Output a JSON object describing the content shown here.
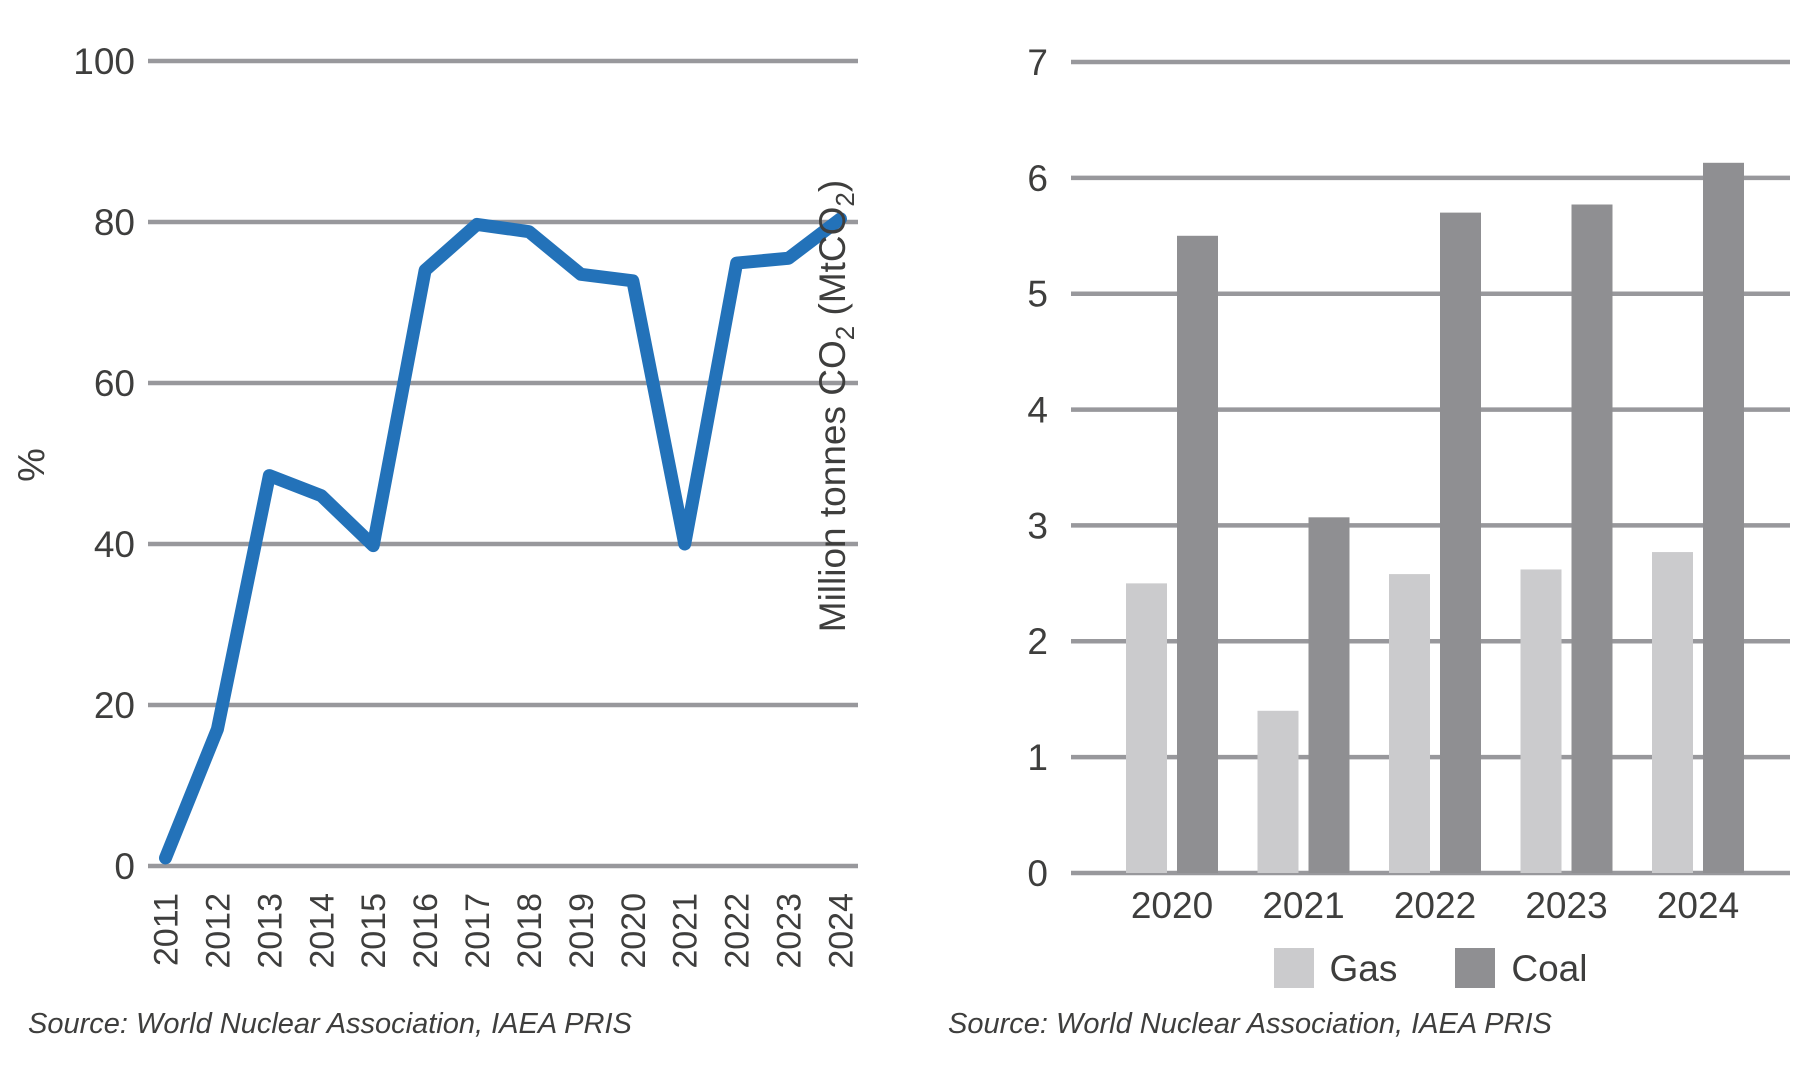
{
  "page": {
    "background": "#ffffff",
    "text_color": "#3e3e3d",
    "gridline_color": "#98989c"
  },
  "left_chart": {
    "source": "Source: World Nuclear Association, IAEA PRIS"
  },
  "right_chart": {
    "source": "Source: World Nuclear Association, IAEA PRIS",
    "legend": [
      {
        "label": "Gas",
        "color": "#cbcbcd"
      },
      {
        "label": "Coal",
        "color": "#8f8f92"
      }
    ]
  },
  "chart_data": [
    {
      "type": "line",
      "title": "",
      "x": [
        "2011",
        "2012",
        "2013",
        "2014",
        "2015",
        "2016",
        "2017",
        "2018",
        "2019",
        "2020",
        "2021",
        "2022",
        "2023",
        "2024"
      ],
      "values": [
        1,
        17,
        48.5,
        46,
        39.8,
        74,
        79.7,
        78.8,
        73.5,
        72.7,
        40,
        74.9,
        75.5,
        80.4
      ],
      "xlabel": "",
      "ylabel": "%",
      "ylim": [
        0,
        100
      ],
      "yticks": [
        0,
        20,
        40,
        60,
        80,
        100
      ],
      "grid": true,
      "legend_position": "none",
      "line_color": "#2372b9",
      "source": "Source: World Nuclear Association, IAEA PRIS"
    },
    {
      "type": "bar",
      "title": "",
      "categories": [
        "2020",
        "2021",
        "2022",
        "2023",
        "2024"
      ],
      "series": [
        {
          "name": "Gas",
          "color": "#cbcbcd",
          "values": [
            2.5,
            1.4,
            2.58,
            2.62,
            2.77
          ]
        },
        {
          "name": "Coal",
          "color": "#8f8f92",
          "values": [
            5.5,
            3.07,
            5.7,
            5.77,
            6.13
          ]
        }
      ],
      "xlabel": "",
      "ylabel": "Million tonnes CO₂ (MtCO₂)",
      "ylabel_parts": [
        {
          "t": "Million tonnes CO"
        },
        {
          "t": "2",
          "sub": true
        },
        {
          "t": " (MtCO"
        },
        {
          "t": "2",
          "sub": true
        },
        {
          "t": ")"
        }
      ],
      "ylim": [
        0,
        7
      ],
      "yticks": [
        0,
        1,
        2,
        3,
        4,
        5,
        6,
        7
      ],
      "grid": true,
      "legend_position": "bottom",
      "source": "Source: World Nuclear Association, IAEA PRIS"
    }
  ]
}
